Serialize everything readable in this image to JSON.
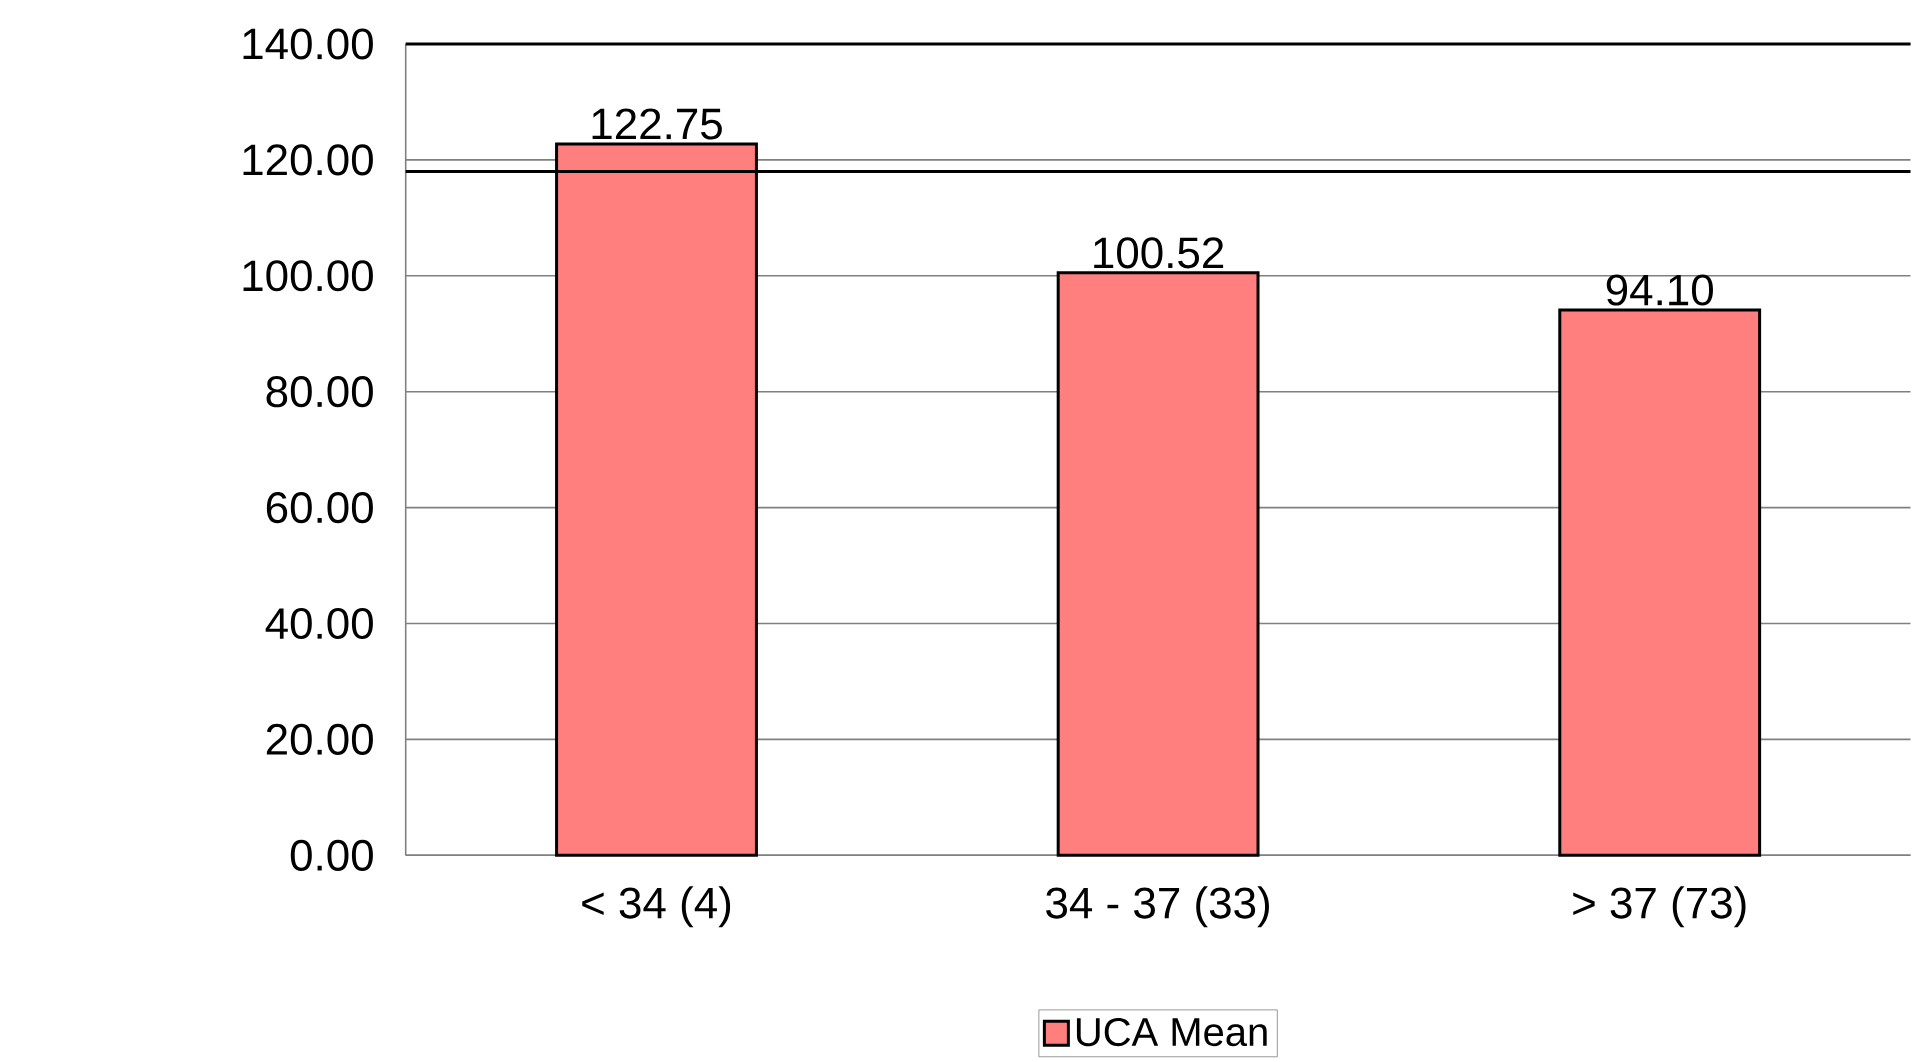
{
  "chart_data": {
    "type": "bar",
    "categories": [
      "< 34    (4)",
      "34 - 37    (33)",
      "> 37 (73)"
    ],
    "series": [
      {
        "name": "UCA Mean",
        "color": "#ff7f7f",
        "values": [
          122.75,
          100.52,
          94.1
        ]
      }
    ],
    "value_labels": [
      "122.75",
      "100.52",
      "94.10"
    ],
    "ylim": [
      0,
      140
    ],
    "yticks": [
      {
        "value": 0,
        "label": "0.00"
      },
      {
        "value": 20,
        "label": "20.00"
      },
      {
        "value": 40,
        "label": "40.00"
      },
      {
        "value": 60,
        "label": "60.00"
      },
      {
        "value": 80,
        "label": "80.00"
      },
      {
        "value": 100,
        "label": "100.00"
      },
      {
        "value": 120,
        "label": "120.00"
      },
      {
        "value": 140,
        "label": "140.00"
      }
    ],
    "ref_lines": [
      {
        "axis": "y",
        "value": 140,
        "color": "#000000"
      },
      {
        "axis": "y",
        "value": 118,
        "color": "#000000"
      }
    ],
    "grid": "y",
    "legend": "bottom"
  }
}
